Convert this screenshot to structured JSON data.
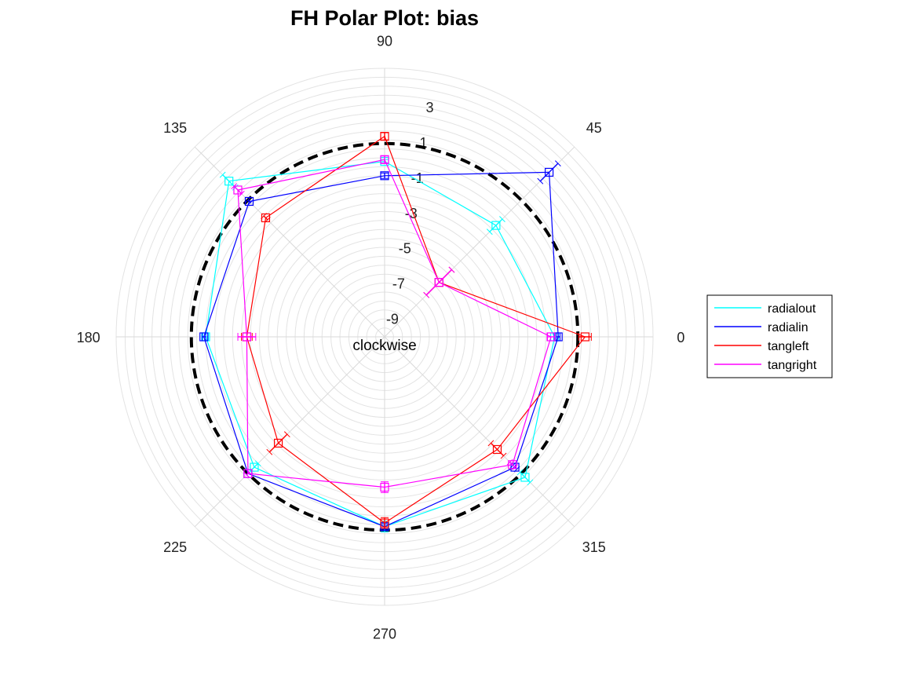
{
  "chart_data": {
    "type": "polar-line",
    "title": "FH Polar Plot: bias",
    "theta_direction_note": "clockwise",
    "angle_ticks": [
      "0",
      "45",
      "90",
      "135",
      "180",
      "225",
      "270",
      "315"
    ],
    "r_ticks": [
      "-9",
      "-7",
      "-5",
      "-3",
      "-1",
      "1",
      "3"
    ],
    "r_tick_values": [
      -9,
      -7,
      -5,
      -3,
      -1,
      1,
      3
    ],
    "rlim": [
      -10,
      5
    ],
    "grid": true,
    "legend_position": "right",
    "reference_circle": {
      "r": 0.8,
      "style": "dashed",
      "color": "#000000"
    },
    "theta": [
      0,
      45,
      90,
      135,
      180,
      225,
      270,
      315
    ],
    "series": [
      {
        "name": "radialout",
        "color": "#00ffff",
        "r": [
          -0.5,
          -1.2,
          -0.2,
          2.3,
          0.0,
          0.3,
          0.6,
          1.1
        ],
        "err": [
          0.05,
          0.5,
          0.1,
          0.5,
          0.15,
          0.3,
          0.3,
          0.4
        ]
      },
      {
        "name": "radialin",
        "color": "#0000ff",
        "r": [
          -0.3,
          3.0,
          -1.0,
          0.7,
          0.1,
          0.8,
          0.6,
          0.3
        ],
        "err": [
          0.1,
          0.7,
          0.15,
          0.1,
          0.1,
          0.1,
          0.15,
          0.15
        ]
      },
      {
        "name": "tangleft",
        "color": "#ff0000",
        "r": [
          1.2,
          -5.7,
          1.2,
          -0.6,
          -2.3,
          -1.6,
          0.4,
          -1.1
        ],
        "err": [
          0.35,
          1.0,
          0.2,
          0.15,
          0.3,
          0.7,
          0.3,
          0.5
        ]
      },
      {
        "name": "tangright",
        "color": "#ff00ff",
        "r": [
          -0.7,
          -5.7,
          -0.1,
          1.6,
          -2.3,
          0.8,
          -1.6,
          0.1
        ],
        "err": [
          0.2,
          1.0,
          0.2,
          0.3,
          0.5,
          0.1,
          0.3,
          0.2
        ]
      }
    ]
  }
}
